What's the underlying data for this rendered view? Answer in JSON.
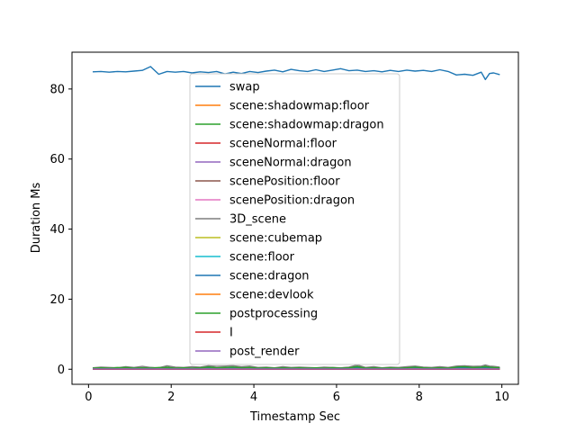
{
  "chart_data": {
    "type": "line",
    "title": "",
    "xlabel": "Timestamp Sec",
    "ylabel": "Duration Ms",
    "xlim": [
      -0.4,
      10.4
    ],
    "ylim": [
      -4.3,
      90.5
    ],
    "xticks": [
      0,
      2,
      4,
      6,
      8,
      10
    ],
    "yticks": [
      0,
      20,
      40,
      60,
      80
    ],
    "grid": false,
    "legend_position": "center",
    "x": [
      0.1,
      0.3,
      0.5,
      0.7,
      0.9,
      1.1,
      1.3,
      1.5,
      1.7,
      1.9,
      2.1,
      2.3,
      2.5,
      2.7,
      2.9,
      3.1,
      3.3,
      3.5,
      3.7,
      3.9,
      4.1,
      4.3,
      4.5,
      4.7,
      4.9,
      5.1,
      5.3,
      5.5,
      5.7,
      5.9,
      6.1,
      6.3,
      6.5,
      6.7,
      6.9,
      7.1,
      7.3,
      7.5,
      7.7,
      7.9,
      8.1,
      8.3,
      8.5,
      8.7,
      8.9,
      9.1,
      9.3,
      9.5,
      9.6,
      9.7,
      9.8,
      9.95
    ],
    "series": [
      {
        "name": "swap",
        "color": "#1f77b4",
        "values": [
          84.9,
          85.0,
          84.8,
          85.0,
          84.9,
          85.1,
          85.3,
          86.4,
          84.2,
          85.0,
          84.8,
          85.0,
          84.6,
          84.9,
          84.7,
          85.0,
          84.3,
          84.8,
          84.4,
          85.0,
          84.7,
          85.1,
          85.4,
          84.9,
          85.6,
          85.2,
          85.0,
          85.5,
          85.0,
          85.4,
          85.8,
          85.2,
          85.4,
          85.0,
          85.2,
          84.9,
          85.3,
          85.0,
          85.4,
          85.1,
          85.3,
          85.0,
          85.5,
          85.0,
          84.0,
          84.2,
          83.9,
          84.8,
          82.7,
          84.4,
          84.6,
          84.1
        ]
      },
      {
        "name": "scene:shadowmap:floor",
        "color": "#ff7f0e",
        "values": [
          0.2,
          0.2,
          0.2,
          0.2,
          0.2,
          0.2,
          0.2,
          0.2,
          0.2,
          0.2,
          0.2,
          0.2,
          0.2,
          0.2,
          0.2,
          0.2,
          0.2,
          0.2,
          0.2,
          0.2,
          0.2,
          0.2,
          0.2,
          0.2,
          0.2,
          0.2,
          0.2,
          0.2,
          0.2,
          0.2,
          0.2,
          0.2,
          0.2,
          0.2,
          0.2,
          0.2,
          0.2,
          0.2,
          0.2,
          0.2,
          0.2,
          0.2,
          0.2,
          0.2,
          0.2,
          0.2,
          0.2,
          0.2,
          0.2,
          0.2,
          0.2,
          0.2
        ]
      },
      {
        "name": "scene:shadowmap:dragon",
        "color": "#2ca02c",
        "values": [
          0.3,
          0.4,
          0.3,
          0.5,
          0.3,
          0.4,
          0.3,
          0.5,
          0.3,
          0.6,
          0.3,
          0.4,
          0.3,
          0.5,
          0.7,
          0.4,
          0.5,
          0.6,
          0.4,
          0.5,
          0.3,
          0.4,
          0.3,
          0.5,
          0.3,
          0.4,
          0.3,
          0.4,
          0.3,
          0.5,
          0.3,
          0.4,
          0.8,
          0.3,
          0.5,
          0.3,
          0.4,
          0.3,
          0.5,
          0.6,
          0.4,
          0.3,
          0.5,
          0.3,
          0.6,
          0.7,
          0.5,
          0.6,
          0.8,
          0.6,
          0.5,
          0.4
        ]
      },
      {
        "name": "sceneNormal:floor",
        "color": "#d62728",
        "values": [
          0.1,
          0.1,
          0.1,
          0.1,
          0.1,
          0.1,
          0.1,
          0.1,
          0.1,
          0.1,
          0.1,
          0.1,
          0.1,
          0.1,
          0.1,
          0.1,
          0.1,
          0.1,
          0.1,
          0.1,
          0.1,
          0.1,
          0.1,
          0.1,
          0.1,
          0.1,
          0.1,
          0.1,
          0.1,
          0.1,
          0.1,
          0.1,
          0.1,
          0.1,
          0.1,
          0.1,
          0.1,
          0.1,
          0.1,
          0.1,
          0.1,
          0.1,
          0.1,
          0.1,
          0.1,
          0.1,
          0.1,
          0.1,
          0.1,
          0.1,
          0.1,
          0.1
        ]
      },
      {
        "name": "sceneNormal:dragon",
        "color": "#9467bd",
        "values": [
          0.2,
          0.3,
          0.2,
          0.3,
          0.2,
          0.3,
          0.2,
          0.3,
          0.2,
          0.3,
          0.2,
          0.3,
          0.2,
          0.3,
          0.2,
          0.3,
          0.2,
          0.3,
          0.2,
          0.3,
          0.2,
          0.3,
          0.2,
          0.3,
          0.2,
          0.3,
          0.2,
          0.3,
          0.2,
          0.3,
          0.2,
          0.3,
          0.2,
          0.3,
          0.2,
          0.3,
          0.2,
          0.3,
          0.2,
          0.3,
          0.2,
          0.3,
          0.2,
          0.3,
          0.2,
          0.3,
          0.2,
          0.3,
          0.2,
          0.3,
          0.2,
          0.3
        ]
      },
      {
        "name": "scenePosition:floor",
        "color": "#8c564b",
        "values": [
          0.1,
          0.1,
          0.1,
          0.1,
          0.1,
          0.1,
          0.1,
          0.1,
          0.1,
          0.1,
          0.1,
          0.1,
          0.1,
          0.1,
          0.1,
          0.1,
          0.1,
          0.1,
          0.1,
          0.1,
          0.1,
          0.1,
          0.1,
          0.1,
          0.1,
          0.1,
          0.1,
          0.1,
          0.1,
          0.1,
          0.1,
          0.1,
          0.1,
          0.1,
          0.1,
          0.1,
          0.1,
          0.1,
          0.1,
          0.1,
          0.1,
          0.1,
          0.1,
          0.1,
          0.1,
          0.1,
          0.1,
          0.1,
          0.1,
          0.1,
          0.1,
          0.1
        ]
      },
      {
        "name": "scenePosition:dragon",
        "color": "#e377c2",
        "values": [
          0.2,
          0.2,
          0.3,
          0.2,
          0.2,
          0.3,
          0.2,
          0.2,
          0.3,
          0.2,
          0.2,
          0.3,
          0.2,
          0.2,
          0.3,
          0.2,
          0.2,
          0.3,
          0.2,
          0.2,
          0.3,
          0.2,
          0.2,
          0.3,
          0.2,
          0.2,
          0.3,
          0.2,
          0.2,
          0.3,
          0.2,
          0.2,
          0.3,
          0.2,
          0.2,
          0.3,
          0.2,
          0.2,
          0.3,
          0.2,
          0.2,
          0.3,
          0.2,
          0.2,
          0.3,
          0.2,
          0.2,
          0.3,
          0.2,
          0.2,
          0.3,
          0.2
        ]
      },
      {
        "name": "3D_scene",
        "color": "#7f7f7f",
        "values": [
          0.4,
          0.6,
          0.5,
          0.4,
          0.7,
          0.5,
          0.8,
          0.5,
          0.4,
          1.0,
          0.6,
          0.5,
          0.7,
          0.6,
          1.0,
          0.8,
          0.9,
          1.0,
          0.7,
          0.9,
          0.5,
          0.6,
          0.4,
          0.7,
          0.5,
          0.6,
          0.5,
          0.4,
          0.6,
          0.5,
          0.4,
          0.6,
          1.2,
          0.5,
          0.7,
          0.4,
          0.6,
          0.5,
          0.7,
          0.9,
          0.6,
          0.5,
          0.7,
          0.5,
          0.9,
          1.0,
          0.8,
          0.9,
          1.2,
          0.9,
          0.8,
          0.6
        ]
      },
      {
        "name": "scene:cubemap",
        "color": "#bcbd22",
        "values": [
          0.1,
          0.1,
          0.1,
          0.1,
          0.1,
          0.1,
          0.1,
          0.1,
          0.1,
          0.1,
          0.1,
          0.1,
          0.1,
          0.1,
          0.1,
          0.1,
          0.1,
          0.1,
          0.1,
          0.1,
          0.1,
          0.1,
          0.1,
          0.1,
          0.1,
          0.1,
          0.1,
          0.1,
          0.1,
          0.1,
          0.1,
          0.1,
          0.1,
          0.1,
          0.1,
          0.1,
          0.1,
          0.1,
          0.1,
          0.1,
          0.1,
          0.1,
          0.1,
          0.1,
          0.1,
          0.1,
          0.1,
          0.1,
          0.1,
          0.1,
          0.1,
          0.1
        ]
      },
      {
        "name": "scene:floor",
        "color": "#17becf",
        "values": [
          0.1,
          0.1,
          0.1,
          0.1,
          0.1,
          0.1,
          0.1,
          0.1,
          0.1,
          0.1,
          0.1,
          0.1,
          0.1,
          0.1,
          0.1,
          0.1,
          0.1,
          0.1,
          0.1,
          0.1,
          0.1,
          0.1,
          0.1,
          0.1,
          0.1,
          0.1,
          0.1,
          0.1,
          0.1,
          0.1,
          0.1,
          0.1,
          0.1,
          0.1,
          0.1,
          0.1,
          0.1,
          0.1,
          0.1,
          0.1,
          0.1,
          0.1,
          0.1,
          0.1,
          0.1,
          0.1,
          0.1,
          0.1,
          0.1,
          0.1,
          0.1,
          0.1
        ]
      },
      {
        "name": "scene:dragon",
        "color": "#1f77b4",
        "values": [
          0.2,
          0.3,
          0.2,
          0.3,
          0.2,
          0.3,
          0.2,
          0.3,
          0.2,
          0.4,
          0.2,
          0.3,
          0.2,
          0.3,
          0.4,
          0.3,
          0.3,
          0.4,
          0.3,
          0.3,
          0.2,
          0.3,
          0.2,
          0.3,
          0.2,
          0.3,
          0.2,
          0.3,
          0.2,
          0.3,
          0.2,
          0.3,
          0.4,
          0.2,
          0.3,
          0.2,
          0.3,
          0.2,
          0.3,
          0.4,
          0.3,
          0.2,
          0.3,
          0.2,
          0.4,
          0.4,
          0.3,
          0.4,
          0.4,
          0.3,
          0.3,
          0.3
        ]
      },
      {
        "name": "scene:devlook",
        "color": "#ff7f0e",
        "values": [
          0.1,
          0.1,
          0.1,
          0.1,
          0.1,
          0.1,
          0.1,
          0.1,
          0.1,
          0.1,
          0.1,
          0.1,
          0.1,
          0.1,
          0.1,
          0.1,
          0.1,
          0.1,
          0.1,
          0.1,
          0.1,
          0.1,
          0.1,
          0.1,
          0.1,
          0.1,
          0.1,
          0.1,
          0.1,
          0.1,
          0.1,
          0.1,
          0.1,
          0.1,
          0.1,
          0.1,
          0.1,
          0.1,
          0.1,
          0.1,
          0.1,
          0.1,
          0.1,
          0.1,
          0.1,
          0.1,
          0.1,
          0.1,
          0.1,
          0.1,
          0.1,
          0.1
        ]
      },
      {
        "name": "postprocessing",
        "color": "#2ca02c",
        "values": [
          0.3,
          0.4,
          0.3,
          0.4,
          0.5,
          0.3,
          0.4,
          0.3,
          0.5,
          0.4,
          0.3,
          0.4,
          0.3,
          0.4,
          0.6,
          0.4,
          0.5,
          0.6,
          0.4,
          0.5,
          0.3,
          0.4,
          0.3,
          0.4,
          0.3,
          0.4,
          0.3,
          0.4,
          0.3,
          0.4,
          0.3,
          0.4,
          0.7,
          0.3,
          0.4,
          0.3,
          0.4,
          0.3,
          0.4,
          0.6,
          0.4,
          0.3,
          0.4,
          0.3,
          0.6,
          0.7,
          0.5,
          0.6,
          0.7,
          0.6,
          0.5,
          0.4
        ]
      },
      {
        "name": "I",
        "color": "#d62728",
        "values": [
          0.0,
          0.0,
          0.0,
          0.0,
          0.0,
          0.0,
          0.0,
          0.0,
          0.0,
          0.0,
          0.0,
          0.0,
          0.0,
          0.0,
          0.0,
          0.0,
          0.0,
          0.0,
          0.0,
          0.0,
          0.0,
          0.0,
          0.0,
          0.0,
          0.0,
          0.0,
          0.0,
          0.0,
          0.0,
          0.0,
          0.0,
          0.0,
          0.0,
          0.0,
          0.0,
          0.0,
          0.0,
          0.0,
          0.0,
          0.0,
          0.0,
          0.0,
          0.0,
          0.0,
          0.0,
          0.0,
          0.0,
          0.0,
          0.0,
          0.0,
          0.0,
          0.0
        ]
      },
      {
        "name": "post_render",
        "color": "#9467bd",
        "values": [
          0.1,
          0.1,
          0.1,
          0.1,
          0.1,
          0.1,
          0.1,
          0.1,
          0.1,
          0.1,
          0.1,
          0.1,
          0.1,
          0.1,
          0.1,
          0.1,
          0.1,
          0.1,
          0.1,
          0.1,
          0.1,
          0.1,
          0.1,
          0.1,
          0.1,
          0.1,
          0.1,
          0.1,
          0.1,
          0.1,
          0.1,
          0.1,
          0.1,
          0.1,
          0.1,
          0.1,
          0.1,
          0.1,
          0.1,
          0.1,
          0.1,
          0.1,
          0.1,
          0.1,
          0.1,
          0.1,
          0.1,
          0.1,
          0.1,
          0.1,
          0.1,
          0.1
        ]
      }
    ]
  }
}
